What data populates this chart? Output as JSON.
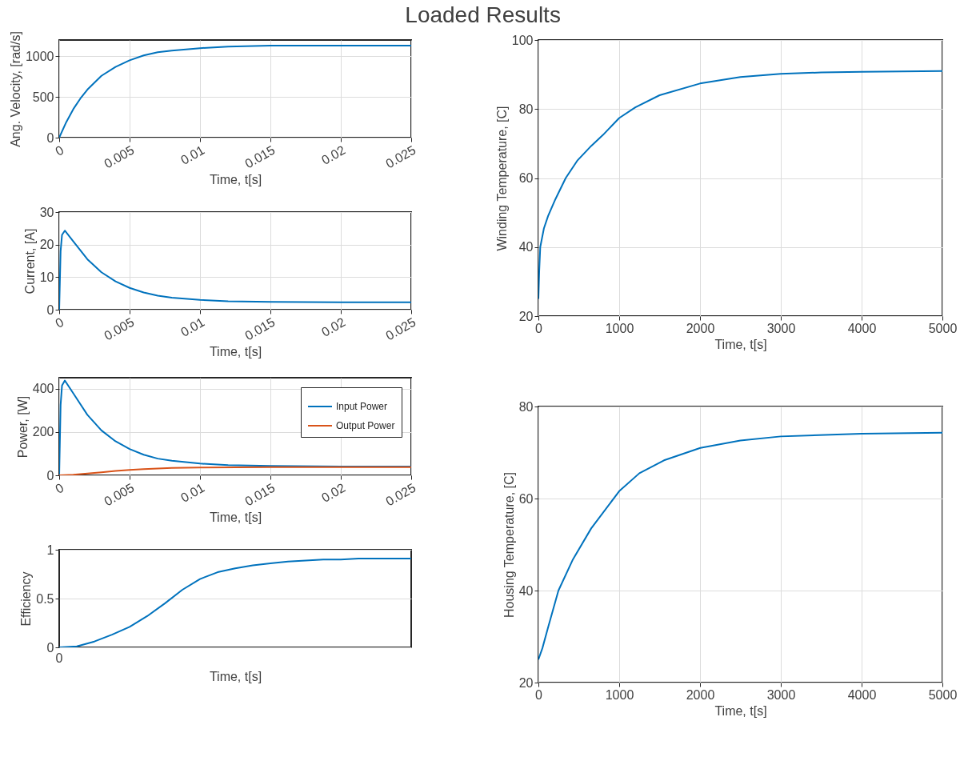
{
  "chart_data": [
    {
      "type": "line",
      "title": "Loaded Results",
      "xlabel": "Time, t[s]",
      "ylabel": "Ang. Velocity, [rad/s]",
      "xlim": [
        0,
        0.025
      ],
      "xticks": [
        0,
        0.005,
        0.01,
        0.015,
        0.02,
        0.025
      ],
      "ylim": [
        0,
        1200
      ],
      "yticks": [
        0,
        500,
        1000
      ],
      "grid": true,
      "color": "#0072bd",
      "x": [
        0,
        0.0005,
        0.001,
        0.0015,
        0.002,
        0.003,
        0.004,
        0.005,
        0.006,
        0.007,
        0.008,
        0.01,
        0.012,
        0.015,
        0.02,
        0.025
      ],
      "values": [
        0,
        190,
        350,
        480,
        590,
        760,
        870,
        950,
        1010,
        1050,
        1070,
        1100,
        1120,
        1130,
        1130,
        1130
      ]
    },
    {
      "type": "line",
      "xlabel": "Time, t[s]",
      "ylabel": "Current, [A]",
      "xlim": [
        0,
        0.025
      ],
      "xticks": [
        0,
        0.005,
        0.01,
        0.015,
        0.02,
        0.025
      ],
      "ylim": [
        0,
        30
      ],
      "yticks": [
        0,
        10,
        20,
        30
      ],
      "grid": true,
      "color": "#0072bd",
      "x": [
        0,
        0.0001,
        0.0002,
        0.0004,
        0.001,
        0.002,
        0.003,
        0.004,
        0.005,
        0.006,
        0.007,
        0.008,
        0.01,
        0.012,
        0.015,
        0.02,
        0.025
      ],
      "values": [
        0,
        18,
        23,
        24.3,
        21,
        15.5,
        11.5,
        8.7,
        6.7,
        5.3,
        4.3,
        3.7,
        3.0,
        2.6,
        2.4,
        2.3,
        2.3
      ]
    },
    {
      "type": "line",
      "xlabel": "Time, t[s]",
      "ylabel": "Power, [W]",
      "xlim": [
        0,
        0.025
      ],
      "xticks": [
        0,
        0.005,
        0.01,
        0.015,
        0.02,
        0.025
      ],
      "ylim": [
        0,
        450
      ],
      "yticks": [
        0,
        200,
        400
      ],
      "grid": true,
      "legend": "top right",
      "series": [
        {
          "name": "Input Power",
          "color": "#0072bd",
          "x": [
            0,
            0.0001,
            0.0002,
            0.0004,
            0.001,
            0.002,
            0.003,
            0.004,
            0.005,
            0.006,
            0.007,
            0.008,
            0.01,
            0.012,
            0.015,
            0.02,
            0.025
          ],
          "values": [
            0,
            324,
            414,
            437,
            378,
            279,
            207,
            157,
            121,
            95,
            77,
            67,
            54,
            47,
            43,
            41,
            41
          ]
        },
        {
          "name": "Output Power",
          "color": "#d95319",
          "x": [
            0,
            0.001,
            0.002,
            0.003,
            0.004,
            0.005,
            0.006,
            0.008,
            0.01,
            0.015,
            0.02,
            0.025
          ],
          "values": [
            0,
            3,
            8,
            14,
            20,
            25,
            29,
            34,
            36,
            38,
            38,
            38
          ]
        }
      ]
    },
    {
      "type": "line",
      "xlabel": "Time, t[s]",
      "ylabel": "Efficiency",
      "ylim": [
        0,
        1
      ],
      "yticks": [
        0,
        0.5,
        1
      ],
      "grid": "y",
      "color": "#0072bd",
      "annotations": [
        "0"
      ],
      "categories": [
        null,
        null,
        null,
        null,
        null,
        null,
        null,
        null,
        null,
        null,
        null,
        null,
        null,
        null,
        null,
        null,
        null,
        null,
        null,
        null,
        null
      ],
      "values": [
        0,
        0.01,
        0.06,
        0.13,
        0.21,
        0.32,
        0.45,
        0.59,
        0.7,
        0.77,
        0.81,
        0.84,
        0.86,
        0.88,
        0.89,
        0.9,
        0.9,
        0.91,
        0.91,
        0.91,
        0.91
      ]
    },
    {
      "type": "line",
      "xlabel": "Time, t[s]",
      "ylabel": "Winding Temperature, [C]",
      "xlim": [
        0,
        5000
      ],
      "xticks": [
        0,
        1000,
        2000,
        3000,
        4000,
        5000
      ],
      "ylim": [
        20,
        100
      ],
      "yticks": [
        20,
        40,
        60,
        80,
        100
      ],
      "grid": true,
      "color": "#0072bd",
      "x": [
        0,
        10,
        23,
        68,
        120,
        203,
        338,
        480,
        653,
        800,
        1000,
        1200,
        1500,
        2000,
        2500,
        3000,
        3500,
        4000,
        5000
      ],
      "values": [
        25,
        33,
        40,
        45.4,
        49,
        53.5,
        60,
        65,
        69.3,
        72.5,
        77.4,
        80.5,
        84,
        87.4,
        89.3,
        90.2,
        90.6,
        90.8,
        91
      ]
    },
    {
      "type": "line",
      "xlabel": "Time, t[s]",
      "ylabel": "Housing Temperature, [C]",
      "xlim": [
        0,
        5000
      ],
      "xticks": [
        0,
        1000,
        2000,
        3000,
        4000,
        5000
      ],
      "ylim": [
        20,
        80
      ],
      "yticks": [
        20,
        40,
        60,
        80
      ],
      "grid": true,
      "color": "#0072bd",
      "x": [
        0,
        50,
        120,
        248,
        428,
        653,
        1000,
        1250,
        1554,
        2004,
        2500,
        3000,
        4000,
        5000
      ],
      "values": [
        25,
        27.5,
        32,
        40,
        46.8,
        53.5,
        61.6,
        65.5,
        68.3,
        71,
        72.6,
        73.5,
        74.1,
        74.3
      ]
    }
  ]
}
